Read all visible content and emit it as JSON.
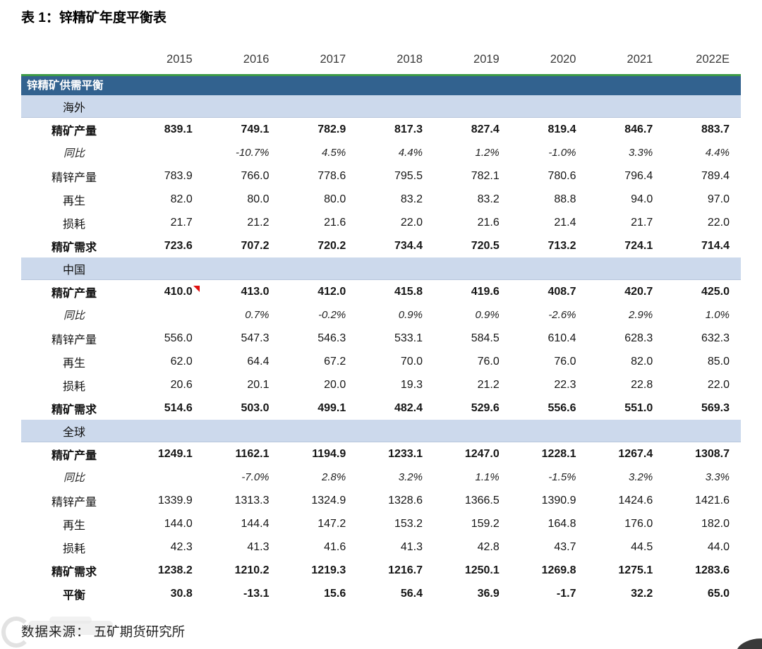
{
  "title": "表 1：锌精矿年度平衡表",
  "table": {
    "band_header": "锌精矿供需平衡",
    "years": [
      "2015",
      "2016",
      "2017",
      "2018",
      "2019",
      "2020",
      "2021",
      "2022E"
    ],
    "sections": [
      {
        "name": "海外",
        "rows": [
          {
            "label": "精矿产量",
            "style": "bold",
            "values": [
              "839.1",
              "749.1",
              "782.9",
              "817.3",
              "827.4",
              "819.4",
              "846.7",
              "883.7"
            ]
          },
          {
            "label": "同比",
            "style": "italic",
            "values": [
              "",
              "-10.7%",
              "4.5%",
              "4.4%",
              "1.2%",
              "-1.0%",
              "3.3%",
              "4.4%"
            ]
          },
          {
            "label": "精锌产量",
            "style": "normal",
            "values": [
              "783.9",
              "766.0",
              "778.6",
              "795.5",
              "782.1",
              "780.6",
              "796.4",
              "789.4"
            ]
          },
          {
            "label": "再生",
            "style": "normal",
            "values": [
              "82.0",
              "80.0",
              "80.0",
              "83.2",
              "83.2",
              "88.8",
              "94.0",
              "97.0"
            ]
          },
          {
            "label": "损耗",
            "style": "normal",
            "values": [
              "21.7",
              "21.2",
              "21.6",
              "22.0",
              "21.6",
              "21.4",
              "21.7",
              "22.0"
            ]
          },
          {
            "label": "精矿需求",
            "style": "bold",
            "values": [
              "723.6",
              "707.2",
              "720.2",
              "734.4",
              "720.5",
              "713.2",
              "724.1",
              "714.4"
            ]
          }
        ]
      },
      {
        "name": "中国",
        "rows": [
          {
            "label": "精矿产量",
            "style": "bold",
            "marker_col": 0,
            "values": [
              "410.0",
              "413.0",
              "412.0",
              "415.8",
              "419.6",
              "408.7",
              "420.7",
              "425.0"
            ]
          },
          {
            "label": "同比",
            "style": "italic",
            "values": [
              "",
              "0.7%",
              "-0.2%",
              "0.9%",
              "0.9%",
              "-2.6%",
              "2.9%",
              "1.0%"
            ]
          },
          {
            "label": "精锌产量",
            "style": "normal",
            "values": [
              "556.0",
              "547.3",
              "546.3",
              "533.1",
              "584.5",
              "610.4",
              "628.3",
              "632.3"
            ]
          },
          {
            "label": "再生",
            "style": "normal",
            "values": [
              "62.0",
              "64.4",
              "67.2",
              "70.0",
              "76.0",
              "76.0",
              "82.0",
              "85.0"
            ]
          },
          {
            "label": "损耗",
            "style": "normal",
            "values": [
              "20.6",
              "20.1",
              "20.0",
              "19.3",
              "21.2",
              "22.3",
              "22.8",
              "22.0"
            ]
          },
          {
            "label": "精矿需求",
            "style": "bold",
            "values": [
              "514.6",
              "503.0",
              "499.1",
              "482.4",
              "529.6",
              "556.6",
              "551.0",
              "569.3"
            ]
          }
        ]
      },
      {
        "name": "全球",
        "rows": [
          {
            "label": "精矿产量",
            "style": "bold",
            "values": [
              "1249.1",
              "1162.1",
              "1194.9",
              "1233.1",
              "1247.0",
              "1228.1",
              "1267.4",
              "1308.7"
            ]
          },
          {
            "label": "同比",
            "style": "italic",
            "values": [
              "",
              "-7.0%",
              "2.8%",
              "3.2%",
              "1.1%",
              "-1.5%",
              "3.2%",
              "3.3%"
            ]
          },
          {
            "label": "精锌产量",
            "style": "normal",
            "values": [
              "1339.9",
              "1313.3",
              "1324.9",
              "1328.6",
              "1366.5",
              "1390.9",
              "1424.6",
              "1421.6"
            ]
          },
          {
            "label": "再生",
            "style": "normal",
            "values": [
              "144.0",
              "144.4",
              "147.2",
              "153.2",
              "159.2",
              "164.8",
              "176.0",
              "182.0"
            ]
          },
          {
            "label": "损耗",
            "style": "normal",
            "values": [
              "42.3",
              "41.3",
              "41.6",
              "41.3",
              "42.8",
              "43.7",
              "44.5",
              "44.0"
            ]
          },
          {
            "label": "精矿需求",
            "style": "bold",
            "values": [
              "1238.2",
              "1210.2",
              "1219.3",
              "1216.7",
              "1250.1",
              "1269.8",
              "1275.1",
              "1283.6"
            ]
          },
          {
            "label": "平衡",
            "style": "bold",
            "values": [
              "30.8",
              "-13.1",
              "15.6",
              "56.4",
              "36.9",
              "-1.7",
              "32.2",
              "65.0"
            ]
          }
        ]
      }
    ]
  },
  "source": {
    "label": "数据来源：",
    "text": "五矿期货研究所"
  },
  "colors": {
    "band_header_bg": "#32628f",
    "band_header_text": "#ffffff",
    "section_band_bg": "#ccd9ec",
    "accent_green_line": "#3d9a47",
    "note_marker_red": "#e01010"
  }
}
